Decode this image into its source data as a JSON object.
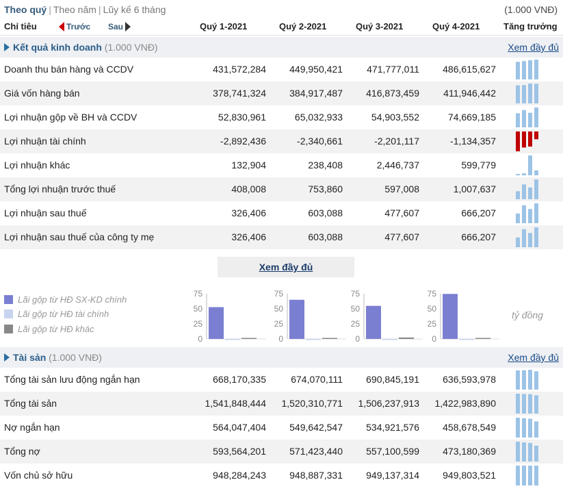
{
  "topbar": {
    "tab1": "Theo quý",
    "tab2": "Theo năm",
    "tab3": "Lũy kế 6 tháng",
    "unit": "(1.000 VNĐ)"
  },
  "header": {
    "label": "Chỉ tiêu",
    "prev": "Trước",
    "next": "Sau",
    "q1": "Quý 1-2021",
    "q2": "Quý 2-2021",
    "q3": "Quý 3-2021",
    "q4": "Quý 4-2021",
    "growth": "Tăng trưởng"
  },
  "section1": {
    "title": "Kết quả kinh doanh",
    "unit": "(1.000 VNĐ)",
    "more": "Xem đầy đủ"
  },
  "rows1": [
    {
      "label": "Doanh thu bán hàng và CCDV",
      "v": [
        "431,572,284",
        "449,950,421",
        "471,777,011",
        "486,615,627"
      ]
    },
    {
      "label": "Giá vốn hàng bán",
      "v": [
        "378,741,324",
        "384,917,487",
        "416,873,459",
        "411,946,442"
      ]
    },
    {
      "label": "Lợi nhuận gộp về BH và CCDV",
      "v": [
        "52,830,961",
        "65,032,933",
        "54,903,552",
        "74,669,185"
      ]
    },
    {
      "label": "Lợi nhuận tài chính",
      "v": [
        "-2,892,436",
        "-2,340,661",
        "-2,201,117",
        "-1,134,357"
      ]
    },
    {
      "label": "Lợi nhuận khác",
      "v": [
        "132,904",
        "238,408",
        "2,446,737",
        "599,779"
      ]
    },
    {
      "label": "Tổng lợi nhuận trước thuế",
      "v": [
        "408,008",
        "753,860",
        "597,008",
        "1,007,637"
      ]
    },
    {
      "label": "Lợi nhuận sau thuế",
      "v": [
        "326,406",
        "603,088",
        "477,607",
        "666,207"
      ]
    },
    {
      "label": "Lợi nhuận sau thuế của công ty mẹ",
      "v": [
        "326,406",
        "603,088",
        "477,607",
        "666,207"
      ]
    }
  ],
  "more_center": "Xem đầy đủ",
  "legend": [
    {
      "label": "Lãi gộp từ HĐ SX-KD chính",
      "color": "#7b7fd1"
    },
    {
      "label": "Lãi gộp từ HĐ tài chính",
      "color": "#c7d3ef"
    },
    {
      "label": "Lãi gộp từ HĐ khác",
      "color": "#888888"
    }
  ],
  "chart_unit": "tỷ đồng",
  "chart_data": [
    {
      "type": "bar",
      "ylim": [
        0,
        75
      ],
      "ticks": [
        "75",
        "50",
        "25",
        "0"
      ],
      "series": [
        {
          "name": "Lãi gộp từ HĐ SX-KD chính",
          "values": [
            52.8
          ]
        },
        {
          "name": "Lãi gộp từ HĐ tài chính",
          "values": [
            -2.9
          ]
        },
        {
          "name": "Lãi gộp từ HĐ khác",
          "values": [
            0.1
          ]
        }
      ]
    },
    {
      "type": "bar",
      "ylim": [
        0,
        75
      ],
      "ticks": [
        "75",
        "50",
        "25",
        "0"
      ],
      "series": [
        {
          "name": "Lãi gộp từ HĐ SX-KD chính",
          "values": [
            65.0
          ]
        },
        {
          "name": "Lãi gộp từ HĐ tài chính",
          "values": [
            -2.3
          ]
        },
        {
          "name": "Lãi gộp từ HĐ khác",
          "values": [
            0.2
          ]
        }
      ]
    },
    {
      "type": "bar",
      "ylim": [
        0,
        75
      ],
      "ticks": [
        "75",
        "50",
        "25",
        "0"
      ],
      "series": [
        {
          "name": "Lãi gộp từ HĐ SX-KD chính",
          "values": [
            54.9
          ]
        },
        {
          "name": "Lãi gộp từ HĐ tài chính",
          "values": [
            -2.2
          ]
        },
        {
          "name": "Lãi gộp từ HĐ khác",
          "values": [
            2.4
          ]
        }
      ]
    },
    {
      "type": "bar",
      "ylim": [
        0,
        75
      ],
      "ticks": [
        "75",
        "50",
        "25",
        "0"
      ],
      "series": [
        {
          "name": "Lãi gộp từ HĐ SX-KD chính",
          "values": [
            74.7
          ]
        },
        {
          "name": "Lãi gộp từ HĐ tài chính",
          "values": [
            -1.1
          ]
        },
        {
          "name": "Lãi gộp từ HĐ khác",
          "values": [
            0.6
          ]
        }
      ]
    }
  ],
  "section2": {
    "title": "Tài sản",
    "unit": "(1.000 VNĐ)",
    "more": "Xem đầy đủ"
  },
  "rows2": [
    {
      "label": "Tổng tài sản lưu động ngắn hạn",
      "v": [
        "668,170,335",
        "674,070,111",
        "690,845,191",
        "636,593,978"
      ]
    },
    {
      "label": "Tổng tài sản",
      "v": [
        "1,541,848,444",
        "1,520,310,771",
        "1,506,237,913",
        "1,422,983,890"
      ]
    },
    {
      "label": "Nợ ngắn hạn",
      "v": [
        "564,047,404",
        "549,642,547",
        "534,921,576",
        "458,678,549"
      ]
    },
    {
      "label": "Tổng nợ",
      "v": [
        "593,564,201",
        "571,423,440",
        "557,100,599",
        "473,180,369"
      ]
    },
    {
      "label": "Vốn chủ sở hữu",
      "v": [
        "948,284,243",
        "948,887,331",
        "949,137,314",
        "949,803,521"
      ]
    }
  ],
  "colors": {
    "spark_pos": "#9cc3e6",
    "spark_neg": "#c00000",
    "bar_main": "#7b7fd1",
    "bar_fin": "#c7d3ef",
    "bar_other": "#888888"
  }
}
